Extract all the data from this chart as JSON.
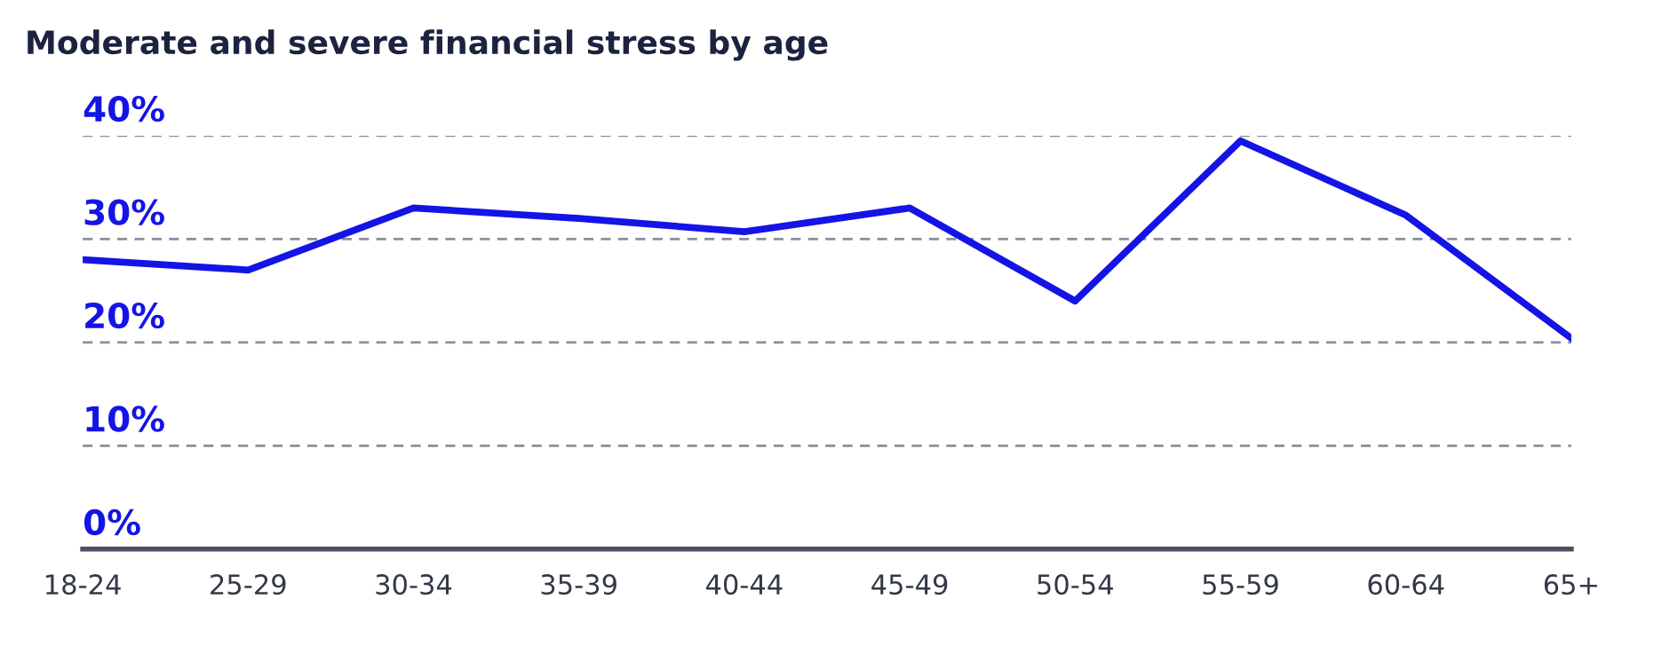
{
  "chart_data": {
    "type": "line",
    "title": "Moderate and severe financial stress by age",
    "categories": [
      "18-24",
      "25-29",
      "30-34",
      "35-39",
      "40-44",
      "45-49",
      "50-54",
      "55-59",
      "60-64",
      "65+"
    ],
    "series": [
      {
        "color": "#1414e6",
        "values": [
          28,
          27,
          33,
          32,
          30.7,
          33,
          24,
          39.5,
          32.3,
          20.4
        ]
      }
    ],
    "ylim": [
      0,
      40
    ],
    "yticks": [
      {
        "value": 0,
        "label": "0%"
      },
      {
        "value": 10,
        "label": "10%"
      },
      {
        "value": 20,
        "label": "20%"
      },
      {
        "value": 30,
        "label": "30%"
      },
      {
        "value": 40,
        "label": "40%"
      }
    ],
    "grid": "y",
    "marker": "none",
    "line_style": "solid"
  }
}
